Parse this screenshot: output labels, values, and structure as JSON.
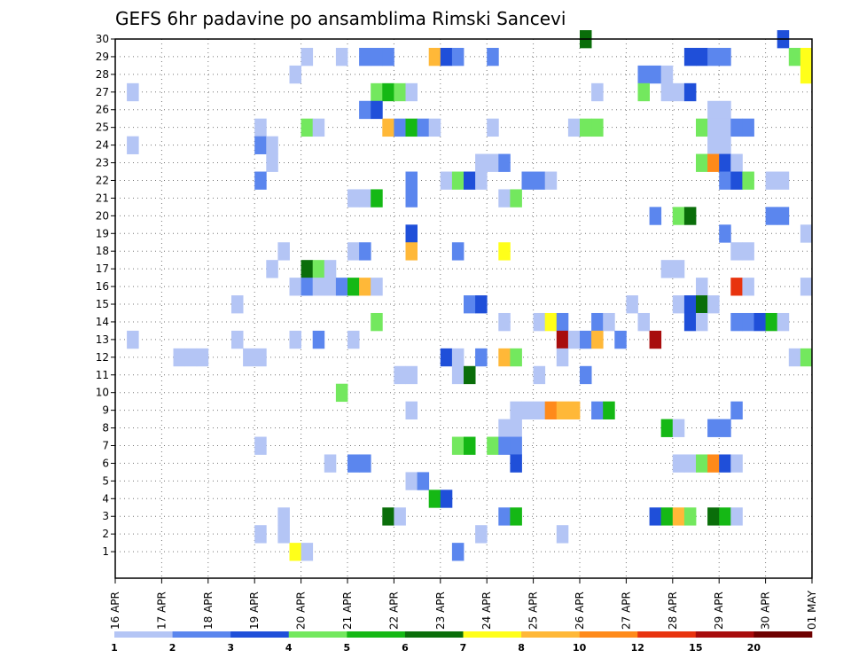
{
  "chart_data": {
    "type": "heatmap",
    "title": "GEFS 6hr padavine po ansamblima Rimski Sancevi",
    "y_categories": [
      "1",
      "2",
      "3",
      "4",
      "5",
      "6",
      "7",
      "8",
      "9",
      "10",
      "11",
      "12",
      "13",
      "14",
      "15",
      "16",
      "17",
      "18",
      "19",
      "20",
      "21",
      "22",
      "23",
      "24",
      "25",
      "26",
      "27",
      "28",
      "29",
      "30"
    ],
    "x_tick_labels": [
      "16 APR",
      "17 APR",
      "18 APR",
      "19 APR",
      "20 APR",
      "21 APR",
      "22 APR",
      "23 APR",
      "24 APR",
      "25 APR",
      "26 APR",
      "27 APR",
      "28 APR",
      "29 APR",
      "30 APR",
      "01 MAY"
    ],
    "x_steps_per_day": 4,
    "x_total_steps": 60,
    "legend": {
      "thresholds": [
        "1",
        "2",
        "3",
        "4",
        "5",
        "6",
        "7",
        "8",
        "10",
        "12",
        "15",
        "20"
      ],
      "colors": [
        "#b4c5f5",
        "#5b86ee",
        "#1f4fd9",
        "#73e85e",
        "#15b815",
        "#0a6e0a",
        "#ffff1a",
        "#ffb838",
        "#ff8a1a",
        "#e8330e",
        "#a80c0c",
        "#6e0000"
      ]
    },
    "cells": [
      {
        "m": 30,
        "t": 41,
        "c": 5
      },
      {
        "m": 30,
        "t": 58,
        "c": 2
      },
      {
        "m": 29,
        "t": 17,
        "c": 0
      },
      {
        "m": 29,
        "t": 20,
        "c": 0
      },
      {
        "m": 29,
        "t": 22,
        "c": 1
      },
      {
        "m": 29,
        "t": 23,
        "c": 1
      },
      {
        "m": 29,
        "t": 24,
        "c": 1
      },
      {
        "m": 29,
        "t": 28,
        "c": 7
      },
      {
        "m": 29,
        "t": 29,
        "c": 2
      },
      {
        "m": 29,
        "t": 30,
        "c": 1
      },
      {
        "m": 29,
        "t": 33,
        "c": 1
      },
      {
        "m": 29,
        "t": 50,
        "c": 2
      },
      {
        "m": 29,
        "t": 51,
        "c": 2
      },
      {
        "m": 29,
        "t": 52,
        "c": 1
      },
      {
        "m": 29,
        "t": 53,
        "c": 1
      },
      {
        "m": 29,
        "t": 59,
        "c": 3
      },
      {
        "m": 29,
        "t": 60,
        "c": 6
      },
      {
        "m": 28,
        "t": 16,
        "c": 0
      },
      {
        "m": 28,
        "t": 46,
        "c": 1
      },
      {
        "m": 28,
        "t": 47,
        "c": 1
      },
      {
        "m": 28,
        "t": 48,
        "c": 0
      },
      {
        "m": 28,
        "t": 60,
        "c": 6
      },
      {
        "m": 27,
        "t": 2,
        "c": 0
      },
      {
        "m": 27,
        "t": 23,
        "c": 3
      },
      {
        "m": 27,
        "t": 24,
        "c": 4
      },
      {
        "m": 27,
        "t": 25,
        "c": 3
      },
      {
        "m": 27,
        "t": 26,
        "c": 0
      },
      {
        "m": 27,
        "t": 42,
        "c": 0
      },
      {
        "m": 27,
        "t": 46,
        "c": 3
      },
      {
        "m": 27,
        "t": 48,
        "c": 0
      },
      {
        "m": 27,
        "t": 49,
        "c": 0
      },
      {
        "m": 27,
        "t": 50,
        "c": 2
      },
      {
        "m": 26,
        "t": 22,
        "c": 1
      },
      {
        "m": 26,
        "t": 23,
        "c": 2
      },
      {
        "m": 26,
        "t": 52,
        "c": 0
      },
      {
        "m": 26,
        "t": 53,
        "c": 0
      },
      {
        "m": 25,
        "t": 13,
        "c": 0
      },
      {
        "m": 25,
        "t": 17,
        "c": 3
      },
      {
        "m": 25,
        "t": 18,
        "c": 0
      },
      {
        "m": 25,
        "t": 24,
        "c": 7
      },
      {
        "m": 25,
        "t": 25,
        "c": 1
      },
      {
        "m": 25,
        "t": 26,
        "c": 4
      },
      {
        "m": 25,
        "t": 27,
        "c": 1
      },
      {
        "m": 25,
        "t": 28,
        "c": 0
      },
      {
        "m": 25,
        "t": 33,
        "c": 0
      },
      {
        "m": 25,
        "t": 40,
        "c": 0
      },
      {
        "m": 25,
        "t": 41,
        "c": 3
      },
      {
        "m": 25,
        "t": 42,
        "c": 3
      },
      {
        "m": 25,
        "t": 51,
        "c": 3
      },
      {
        "m": 25,
        "t": 52,
        "c": 0
      },
      {
        "m": 25,
        "t": 53,
        "c": 0
      },
      {
        "m": 25,
        "t": 54,
        "c": 1
      },
      {
        "m": 25,
        "t": 55,
        "c": 1
      },
      {
        "m": 24,
        "t": 2,
        "c": 0
      },
      {
        "m": 24,
        "t": 13,
        "c": 1
      },
      {
        "m": 24,
        "t": 14,
        "c": 0
      },
      {
        "m": 24,
        "t": 52,
        "c": 0
      },
      {
        "m": 24,
        "t": 53,
        "c": 0
      },
      {
        "m": 23,
        "t": 14,
        "c": 0
      },
      {
        "m": 23,
        "t": 32,
        "c": 0
      },
      {
        "m": 23,
        "t": 33,
        "c": 0
      },
      {
        "m": 23,
        "t": 34,
        "c": 1
      },
      {
        "m": 23,
        "t": 51,
        "c": 3
      },
      {
        "m": 23,
        "t": 52,
        "c": 8
      },
      {
        "m": 23,
        "t": 53,
        "c": 2
      },
      {
        "m": 23,
        "t": 54,
        "c": 0
      },
      {
        "m": 22,
        "t": 13,
        "c": 1
      },
      {
        "m": 22,
        "t": 26,
        "c": 1
      },
      {
        "m": 22,
        "t": 29,
        "c": 0
      },
      {
        "m": 22,
        "t": 30,
        "c": 3
      },
      {
        "m": 22,
        "t": 31,
        "c": 2
      },
      {
        "m": 22,
        "t": 32,
        "c": 0
      },
      {
        "m": 22,
        "t": 36,
        "c": 1
      },
      {
        "m": 22,
        "t": 37,
        "c": 1
      },
      {
        "m": 22,
        "t": 38,
        "c": 0
      },
      {
        "m": 22,
        "t": 53,
        "c": 1
      },
      {
        "m": 22,
        "t": 54,
        "c": 2
      },
      {
        "m": 22,
        "t": 55,
        "c": 3
      },
      {
        "m": 22,
        "t": 57,
        "c": 0
      },
      {
        "m": 22,
        "t": 58,
        "c": 0
      },
      {
        "m": 21,
        "t": 21,
        "c": 0
      },
      {
        "m": 21,
        "t": 22,
        "c": 0
      },
      {
        "m": 21,
        "t": 23,
        "c": 4
      },
      {
        "m": 21,
        "t": 26,
        "c": 1
      },
      {
        "m": 21,
        "t": 34,
        "c": 0
      },
      {
        "m": 21,
        "t": 35,
        "c": 3
      },
      {
        "m": 20,
        "t": 47,
        "c": 1
      },
      {
        "m": 20,
        "t": 49,
        "c": 3
      },
      {
        "m": 20,
        "t": 50,
        "c": 5
      },
      {
        "m": 20,
        "t": 57,
        "c": 1
      },
      {
        "m": 20,
        "t": 58,
        "c": 1
      },
      {
        "m": 19,
        "t": 26,
        "c": 2
      },
      {
        "m": 19,
        "t": 53,
        "c": 1
      },
      {
        "m": 19,
        "t": 60,
        "c": 0
      },
      {
        "m": 18,
        "t": 15,
        "c": 0
      },
      {
        "m": 18,
        "t": 21,
        "c": 0
      },
      {
        "m": 18,
        "t": 22,
        "c": 1
      },
      {
        "m": 18,
        "t": 26,
        "c": 7
      },
      {
        "m": 18,
        "t": 30,
        "c": 1
      },
      {
        "m": 18,
        "t": 34,
        "c": 6
      },
      {
        "m": 18,
        "t": 54,
        "c": 0
      },
      {
        "m": 18,
        "t": 55,
        "c": 0
      },
      {
        "m": 17,
        "t": 14,
        "c": 0
      },
      {
        "m": 17,
        "t": 17,
        "c": 5
      },
      {
        "m": 17,
        "t": 18,
        "c": 3
      },
      {
        "m": 17,
        "t": 19,
        "c": 0
      },
      {
        "m": 17,
        "t": 48,
        "c": 0
      },
      {
        "m": 17,
        "t": 49,
        "c": 0
      },
      {
        "m": 16,
        "t": 16,
        "c": 0
      },
      {
        "m": 16,
        "t": 17,
        "c": 1
      },
      {
        "m": 16,
        "t": 18,
        "c": 0
      },
      {
        "m": 16,
        "t": 19,
        "c": 0
      },
      {
        "m": 16,
        "t": 20,
        "c": 1
      },
      {
        "m": 16,
        "t": 21,
        "c": 4
      },
      {
        "m": 16,
        "t": 22,
        "c": 7
      },
      {
        "m": 16,
        "t": 23,
        "c": 0
      },
      {
        "m": 16,
        "t": 51,
        "c": 0
      },
      {
        "m": 16,
        "t": 54,
        "c": 9
      },
      {
        "m": 16,
        "t": 55,
        "c": 0
      },
      {
        "m": 16,
        "t": 60,
        "c": 0
      },
      {
        "m": 15,
        "t": 11,
        "c": 0
      },
      {
        "m": 15,
        "t": 31,
        "c": 1
      },
      {
        "m": 15,
        "t": 32,
        "c": 2
      },
      {
        "m": 15,
        "t": 45,
        "c": 0
      },
      {
        "m": 15,
        "t": 49,
        "c": 0
      },
      {
        "m": 15,
        "t": 50,
        "c": 2
      },
      {
        "m": 15,
        "t": 51,
        "c": 5
      },
      {
        "m": 15,
        "t": 52,
        "c": 0
      },
      {
        "m": 14,
        "t": 23,
        "c": 3
      },
      {
        "m": 14,
        "t": 34,
        "c": 0
      },
      {
        "m": 14,
        "t": 37,
        "c": 0
      },
      {
        "m": 14,
        "t": 38,
        "c": 6
      },
      {
        "m": 14,
        "t": 39,
        "c": 1
      },
      {
        "m": 14,
        "t": 42,
        "c": 1
      },
      {
        "m": 14,
        "t": 43,
        "c": 0
      },
      {
        "m": 14,
        "t": 46,
        "c": 0
      },
      {
        "m": 14,
        "t": 50,
        "c": 2
      },
      {
        "m": 14,
        "t": 51,
        "c": 0
      },
      {
        "m": 14,
        "t": 54,
        "c": 1
      },
      {
        "m": 14,
        "t": 55,
        "c": 1
      },
      {
        "m": 14,
        "t": 56,
        "c": 2
      },
      {
        "m": 14,
        "t": 57,
        "c": 4
      },
      {
        "m": 14,
        "t": 58,
        "c": 0
      },
      {
        "m": 13,
        "t": 2,
        "c": 0
      },
      {
        "m": 13,
        "t": 11,
        "c": 0
      },
      {
        "m": 13,
        "t": 16,
        "c": 0
      },
      {
        "m": 13,
        "t": 18,
        "c": 1
      },
      {
        "m": 13,
        "t": 21,
        "c": 0
      },
      {
        "m": 13,
        "t": 39,
        "c": 10
      },
      {
        "m": 13,
        "t": 40,
        "c": 0
      },
      {
        "m": 13,
        "t": 41,
        "c": 1
      },
      {
        "m": 13,
        "t": 42,
        "c": 7
      },
      {
        "m": 13,
        "t": 44,
        "c": 1
      },
      {
        "m": 13,
        "t": 47,
        "c": 10
      },
      {
        "m": 12,
        "t": 6,
        "c": 0
      },
      {
        "m": 12,
        "t": 7,
        "c": 0
      },
      {
        "m": 12,
        "t": 8,
        "c": 0
      },
      {
        "m": 12,
        "t": 12,
        "c": 0
      },
      {
        "m": 12,
        "t": 13,
        "c": 0
      },
      {
        "m": 12,
        "t": 29,
        "c": 2
      },
      {
        "m": 12,
        "t": 30,
        "c": 0
      },
      {
        "m": 12,
        "t": 32,
        "c": 1
      },
      {
        "m": 12,
        "t": 34,
        "c": 7
      },
      {
        "m": 12,
        "t": 35,
        "c": 3
      },
      {
        "m": 12,
        "t": 39,
        "c": 0
      },
      {
        "m": 12,
        "t": 59,
        "c": 0
      },
      {
        "m": 12,
        "t": 60,
        "c": 3
      },
      {
        "m": 11,
        "t": 25,
        "c": 0
      },
      {
        "m": 11,
        "t": 26,
        "c": 0
      },
      {
        "m": 11,
        "t": 30,
        "c": 0
      },
      {
        "m": 11,
        "t": 31,
        "c": 5
      },
      {
        "m": 11,
        "t": 37,
        "c": 0
      },
      {
        "m": 11,
        "t": 41,
        "c": 1
      },
      {
        "m": 10,
        "t": 20,
        "c": 3
      },
      {
        "m": 9,
        "t": 26,
        "c": 0
      },
      {
        "m": 9,
        "t": 35,
        "c": 0
      },
      {
        "m": 9,
        "t": 36,
        "c": 0
      },
      {
        "m": 9,
        "t": 37,
        "c": 0
      },
      {
        "m": 9,
        "t": 38,
        "c": 8
      },
      {
        "m": 9,
        "t": 39,
        "c": 7
      },
      {
        "m": 9,
        "t": 40,
        "c": 7
      },
      {
        "m": 9,
        "t": 42,
        "c": 1
      },
      {
        "m": 9,
        "t": 43,
        "c": 4
      },
      {
        "m": 9,
        "t": 54,
        "c": 1
      },
      {
        "m": 8,
        "t": 34,
        "c": 0
      },
      {
        "m": 8,
        "t": 35,
        "c": 0
      },
      {
        "m": 8,
        "t": 48,
        "c": 4
      },
      {
        "m": 8,
        "t": 49,
        "c": 0
      },
      {
        "m": 8,
        "t": 52,
        "c": 1
      },
      {
        "m": 8,
        "t": 53,
        "c": 1
      },
      {
        "m": 7,
        "t": 13,
        "c": 0
      },
      {
        "m": 7,
        "t": 30,
        "c": 3
      },
      {
        "m": 7,
        "t": 31,
        "c": 4
      },
      {
        "m": 7,
        "t": 33,
        "c": 3
      },
      {
        "m": 7,
        "t": 34,
        "c": 1
      },
      {
        "m": 7,
        "t": 35,
        "c": 1
      },
      {
        "m": 6,
        "t": 19,
        "c": 0
      },
      {
        "m": 6,
        "t": 21,
        "c": 1
      },
      {
        "m": 6,
        "t": 22,
        "c": 1
      },
      {
        "m": 6,
        "t": 35,
        "c": 2
      },
      {
        "m": 6,
        "t": 49,
        "c": 0
      },
      {
        "m": 6,
        "t": 50,
        "c": 0
      },
      {
        "m": 6,
        "t": 51,
        "c": 3
      },
      {
        "m": 6,
        "t": 52,
        "c": 8
      },
      {
        "m": 6,
        "t": 53,
        "c": 2
      },
      {
        "m": 6,
        "t": 54,
        "c": 0
      },
      {
        "m": 5,
        "t": 26,
        "c": 0
      },
      {
        "m": 5,
        "t": 27,
        "c": 1
      },
      {
        "m": 4,
        "t": 28,
        "c": 4
      },
      {
        "m": 4,
        "t": 29,
        "c": 2
      },
      {
        "m": 3,
        "t": 15,
        "c": 0
      },
      {
        "m": 3,
        "t": 24,
        "c": 5
      },
      {
        "m": 3,
        "t": 25,
        "c": 0
      },
      {
        "m": 3,
        "t": 34,
        "c": 1
      },
      {
        "m": 3,
        "t": 35,
        "c": 4
      },
      {
        "m": 3,
        "t": 47,
        "c": 2
      },
      {
        "m": 3,
        "t": 48,
        "c": 4
      },
      {
        "m": 3,
        "t": 49,
        "c": 7
      },
      {
        "m": 3,
        "t": 50,
        "c": 3
      },
      {
        "m": 3,
        "t": 52,
        "c": 5
      },
      {
        "m": 3,
        "t": 53,
        "c": 4
      },
      {
        "m": 3,
        "t": 54,
        "c": 0
      },
      {
        "m": 2,
        "t": 13,
        "c": 0
      },
      {
        "m": 2,
        "t": 15,
        "c": 0
      },
      {
        "m": 2,
        "t": 32,
        "c": 0
      },
      {
        "m": 2,
        "t": 39,
        "c": 0
      },
      {
        "m": 1,
        "t": 16,
        "c": 6
      },
      {
        "m": 1,
        "t": 17,
        "c": 0
      },
      {
        "m": 1,
        "t": 30,
        "c": 1
      }
    ]
  }
}
